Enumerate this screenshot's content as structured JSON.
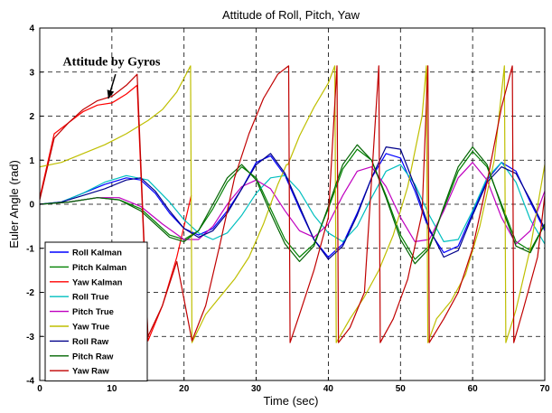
{
  "chart_data": {
    "type": "line",
    "title": "Attitude of Roll, Pitch, Yaw",
    "xlabel": "Time (sec)",
    "ylabel": "Euler Angle  (rad)",
    "xlim": [
      0,
      70
    ],
    "ylim": [
      -4,
      4
    ],
    "xticks": [
      0,
      10,
      20,
      30,
      40,
      50,
      60,
      70
    ],
    "yticks": [
      -4,
      -3,
      -2,
      -1,
      0,
      1,
      2,
      3,
      4
    ],
    "grid": true,
    "legend_position": "bottom-left",
    "annotation": {
      "text": "Attitude by Gyros",
      "text_at": [
        3.2,
        3.15
      ],
      "arrow_from": [
        10.5,
        2.95
      ],
      "arrow_to": [
        9.5,
        2.4
      ]
    },
    "series": [
      {
        "name": "Roll Kalman",
        "color": "#0000ff",
        "x": [
          0,
          3,
          6,
          9,
          12,
          14,
          16,
          18,
          20,
          22,
          24,
          26,
          28,
          30,
          32,
          34,
          36,
          38,
          40,
          42,
          44,
          46,
          48,
          50,
          52,
          54,
          56,
          58,
          60,
          62,
          64,
          66,
          68,
          70
        ],
        "y": [
          0,
          0.05,
          0.25,
          0.45,
          0.6,
          0.55,
          0.25,
          -0.2,
          -0.55,
          -0.7,
          -0.55,
          -0.15,
          0.35,
          0.95,
          1.1,
          0.65,
          -0.1,
          -0.8,
          -1.2,
          -0.9,
          -0.2,
          0.6,
          1.15,
          1.05,
          0.3,
          -0.6,
          -1.1,
          -0.95,
          -0.2,
          0.55,
          0.95,
          0.75,
          0.05,
          -0.6
        ]
      },
      {
        "name": "Pitch Kalman",
        "color": "#008000",
        "x": [
          0,
          4,
          8,
          11,
          14,
          16,
          18,
          20,
          22,
          24,
          26,
          28,
          30,
          32,
          34,
          36,
          38,
          40,
          42,
          44,
          46,
          48,
          50,
          52,
          54,
          56,
          58,
          60,
          62,
          64,
          66,
          68,
          70
        ],
        "y": [
          0,
          0.05,
          0.15,
          0.1,
          -0.1,
          -0.4,
          -0.7,
          -0.8,
          -0.6,
          -0.1,
          0.5,
          0.85,
          0.6,
          -0.1,
          -0.8,
          -1.2,
          -0.9,
          -0.1,
          0.8,
          1.25,
          1.0,
          0.2,
          -0.7,
          -1.25,
          -0.95,
          -0.1,
          0.75,
          1.2,
          0.85,
          0.0,
          -0.85,
          -1.05,
          -0.45
        ]
      },
      {
        "name": "Yaw Kalman",
        "color": "#ff0000",
        "x": [
          0,
          2,
          4,
          6,
          8,
          10,
          12,
          13.5,
          15,
          17,
          19,
          21
        ],
        "y": [
          0.15,
          1.6,
          1.85,
          2.1,
          2.25,
          2.3,
          2.5,
          2.7,
          -3.1,
          -2.3,
          -1.2,
          0.2
        ]
      },
      {
        "name": "Roll True",
        "color": "#00bfbf",
        "x": [
          0,
          3,
          6,
          9,
          12,
          15,
          18,
          20,
          22,
          24,
          26,
          28,
          30,
          32,
          34,
          36,
          38,
          40,
          42,
          44,
          46,
          48,
          50,
          52,
          54,
          56,
          58,
          60,
          62,
          64,
          66,
          68,
          70
        ],
        "y": [
          0,
          0.05,
          0.25,
          0.5,
          0.65,
          0.55,
          0.05,
          -0.35,
          -0.65,
          -0.8,
          -0.65,
          -0.25,
          0.25,
          0.6,
          0.65,
          0.3,
          -0.25,
          -0.65,
          -0.85,
          -0.5,
          0.15,
          0.75,
          0.9,
          0.45,
          -0.25,
          -0.85,
          -0.8,
          -0.15,
          0.6,
          0.95,
          0.5,
          -0.35,
          -0.9
        ]
      },
      {
        "name": "Pitch True",
        "color": "#bf00bf",
        "x": [
          0,
          4,
          8,
          11,
          14,
          17,
          20,
          22,
          24,
          26,
          28,
          30,
          32,
          34,
          36,
          38,
          40,
          42,
          44,
          46,
          48,
          50,
          52,
          54,
          56,
          58,
          60,
          62,
          64,
          66,
          68,
          70
        ],
        "y": [
          0,
          0.05,
          0.15,
          0.15,
          -0.05,
          -0.45,
          -0.8,
          -0.8,
          -0.5,
          0.0,
          0.4,
          0.55,
          0.35,
          -0.15,
          -0.6,
          -0.75,
          -0.45,
          0.2,
          0.75,
          0.85,
          0.4,
          -0.3,
          -0.85,
          -0.8,
          -0.15,
          0.6,
          0.95,
          0.55,
          -0.3,
          -0.9,
          -0.6,
          0.3
        ]
      },
      {
        "name": "Yaw True",
        "color": "#bfbf00",
        "x": [
          0,
          3,
          6,
          9,
          12,
          15,
          17,
          19,
          20.9,
          21.1,
          23,
          25,
          27,
          29,
          31,
          33,
          34.2,
          34.4,
          36,
          38,
          40,
          40.9,
          41.1,
          43,
          45,
          47,
          49,
          51,
          53,
          53.6,
          53.8,
          55,
          57,
          59,
          61,
          63,
          64.4,
          64.6,
          66,
          68,
          70
        ],
        "y": [
          0.85,
          0.95,
          1.15,
          1.35,
          1.6,
          1.9,
          2.15,
          2.55,
          3.14,
          -3.14,
          -2.5,
          -2.1,
          -1.7,
          -1.2,
          -0.45,
          0.45,
          0.9,
          0.9,
          1.55,
          2.2,
          2.75,
          3.14,
          -3.14,
          -2.6,
          -2.1,
          -1.5,
          -0.7,
          0.4,
          2.0,
          3.14,
          -3.14,
          -2.6,
          -2.2,
          -1.6,
          -0.5,
          1.0,
          3.14,
          -3.14,
          -2.4,
          -1.0,
          0.9
        ]
      },
      {
        "name": "Roll Raw",
        "color": "#00008b",
        "x": [
          0,
          3,
          6,
          9,
          12,
          14,
          16,
          18,
          20,
          22,
          24,
          26,
          28,
          30,
          32,
          34,
          36,
          38,
          40,
          42,
          44,
          46,
          48,
          50,
          52,
          54,
          56,
          58,
          60,
          62,
          64,
          66,
          68,
          70
        ],
        "y": [
          0,
          0.05,
          0.2,
          0.35,
          0.55,
          0.6,
          0.3,
          -0.15,
          -0.55,
          -0.75,
          -0.6,
          -0.2,
          0.35,
          0.9,
          1.15,
          0.7,
          -0.05,
          -0.8,
          -1.25,
          -0.95,
          -0.25,
          0.6,
          1.3,
          1.25,
          0.4,
          -0.55,
          -1.2,
          -1.05,
          -0.25,
          0.5,
          0.85,
          0.7,
          0.1,
          -0.55
        ]
      },
      {
        "name": "Pitch Raw",
        "color": "#006400",
        "x": [
          0,
          4,
          8,
          11,
          14,
          16,
          18,
          20,
          22,
          24,
          26,
          28,
          30,
          32,
          34,
          36,
          38,
          40,
          42,
          44,
          46,
          48,
          50,
          52,
          54,
          56,
          58,
          60,
          62,
          64,
          66,
          68,
          70
        ],
        "y": [
          0,
          0.05,
          0.15,
          0.1,
          -0.15,
          -0.45,
          -0.75,
          -0.85,
          -0.6,
          0.0,
          0.6,
          0.9,
          0.55,
          -0.2,
          -0.9,
          -1.3,
          -0.95,
          -0.05,
          0.9,
          1.35,
          1.0,
          0.15,
          -0.8,
          -1.35,
          -1.0,
          -0.05,
          0.85,
          1.3,
          0.9,
          -0.05,
          -0.95,
          -1.1,
          -0.45
        ]
      },
      {
        "name": "Yaw Raw",
        "color": "#c00000",
        "x": [
          0,
          2,
          4,
          6,
          8,
          10,
          12,
          13.5,
          15,
          17,
          19,
          21.1,
          23,
          25,
          27,
          29,
          31,
          33,
          34.5,
          34.7,
          36,
          38,
          40,
          41.2,
          41.4,
          43,
          45,
          47,
          47.2,
          49,
          51,
          53,
          53.8,
          54,
          56,
          58,
          60,
          62,
          64,
          65.5,
          65.7,
          67,
          69,
          70
        ],
        "y": [
          0.1,
          1.5,
          1.85,
          2.15,
          2.35,
          2.45,
          2.7,
          2.95,
          -3.0,
          -2.3,
          -1.3,
          -3.1,
          -2.3,
          -0.9,
          0.6,
          1.6,
          2.4,
          2.95,
          3.14,
          -3.14,
          -2.5,
          -1.5,
          -0.3,
          3.14,
          -3.14,
          -2.8,
          -2.0,
          3.14,
          -3.14,
          -2.6,
          -1.7,
          -0.2,
          3.14,
          -3.14,
          -2.6,
          -2.0,
          -1.0,
          0.5,
          2.2,
          3.14,
          -3.14,
          -2.4,
          -1.2,
          0.2
        ]
      }
    ]
  }
}
